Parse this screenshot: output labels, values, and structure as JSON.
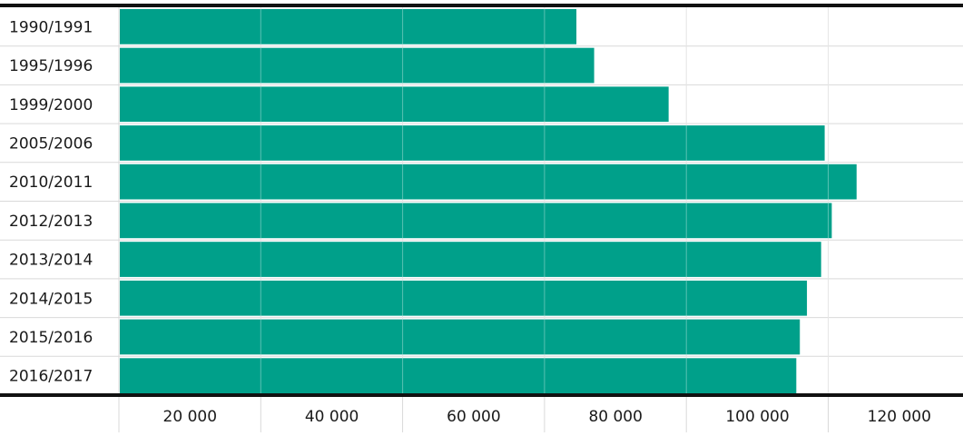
{
  "chart_data": {
    "type": "bar",
    "orientation": "horizontal",
    "categories": [
      "1990/1991",
      "1995/1996",
      "1999/2000",
      "2005/2006",
      "2010/2011",
      "2012/2013",
      "2013/2014",
      "2014/2015",
      "2015/2016",
      "2016/2017"
    ],
    "values": [
      64500,
      67000,
      77500,
      99500,
      104000,
      100500,
      99000,
      97000,
      96000,
      95500
    ],
    "x_tick_values": [
      20000,
      40000,
      60000,
      80000,
      100000,
      120000
    ],
    "x_tick_labels": [
      "20 000",
      "40 000",
      "60 000",
      "80 000",
      "100 000",
      "120 000"
    ],
    "xlim": [
      0,
      120000
    ],
    "grid": true,
    "legend": "none",
    "title": "",
    "xlabel": "",
    "ylabel": "",
    "colors": {
      "bar": "#00a08a",
      "grid": "#d9d9d9",
      "axis": "#111111",
      "text": "#1a1a1a"
    }
  }
}
